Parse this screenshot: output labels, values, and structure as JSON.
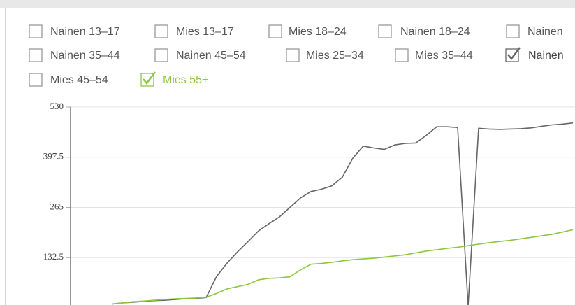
{
  "chart_data": {
    "type": "line",
    "unchecked": [
      "Nainen 13–17",
      "Mies 13–17",
      "Mies 18–24",
      "Nainen 18–24",
      "Nainen",
      "Nainen 35–44",
      "Nainen 45–54",
      "Mies 25–34",
      "Mies 35–44",
      "Mies 45–54"
    ],
    "categories": [
      null,
      null,
      null,
      null,
      null,
      null,
      null,
      null,
      null,
      null,
      null,
      null,
      null,
      null,
      null,
      null,
      null,
      null,
      null,
      null,
      null,
      null,
      null,
      null,
      null,
      null,
      null,
      null,
      null,
      null,
      null,
      null,
      null,
      null,
      null,
      null,
      null,
      null,
      null,
      null,
      null,
      null,
      null,
      null,
      null
    ],
    "series": [
      {
        "name": "Nainen",
        "color": "#666666",
        "values": [
          10,
          13,
          15,
          17,
          19,
          20,
          22,
          24,
          25,
          27,
          83,
          118,
          148,
          175,
          203,
          222,
          240,
          265,
          290,
          307,
          313,
          322,
          345,
          395,
          427,
          422,
          418,
          430,
          434,
          435,
          455,
          478,
          478,
          476,
          5,
          474,
          472,
          471,
          472,
          473,
          475,
          479,
          483,
          485,
          488
        ]
      },
      {
        "name": "Mies 55+",
        "color": "#8dc63f",
        "values": [
          10,
          13,
          16,
          18,
          20,
          22,
          24,
          25,
          26,
          28,
          38,
          50,
          56,
          62,
          74,
          78,
          79,
          82,
          100,
          115,
          117,
          120,
          124,
          127,
          129,
          131,
          134,
          137,
          140,
          145,
          150,
          153,
          157,
          160,
          164,
          168,
          172,
          175,
          178,
          182,
          186,
          190,
          194,
          200,
          206
        ]
      }
    ],
    "ylim": [
      0,
      530
    ],
    "yticks": [
      {
        "value": 132.5,
        "label": "132.5"
      },
      265,
      {
        "value": 397.5,
        "label": "397.5"
      },
      530
    ],
    "grid": true
  }
}
